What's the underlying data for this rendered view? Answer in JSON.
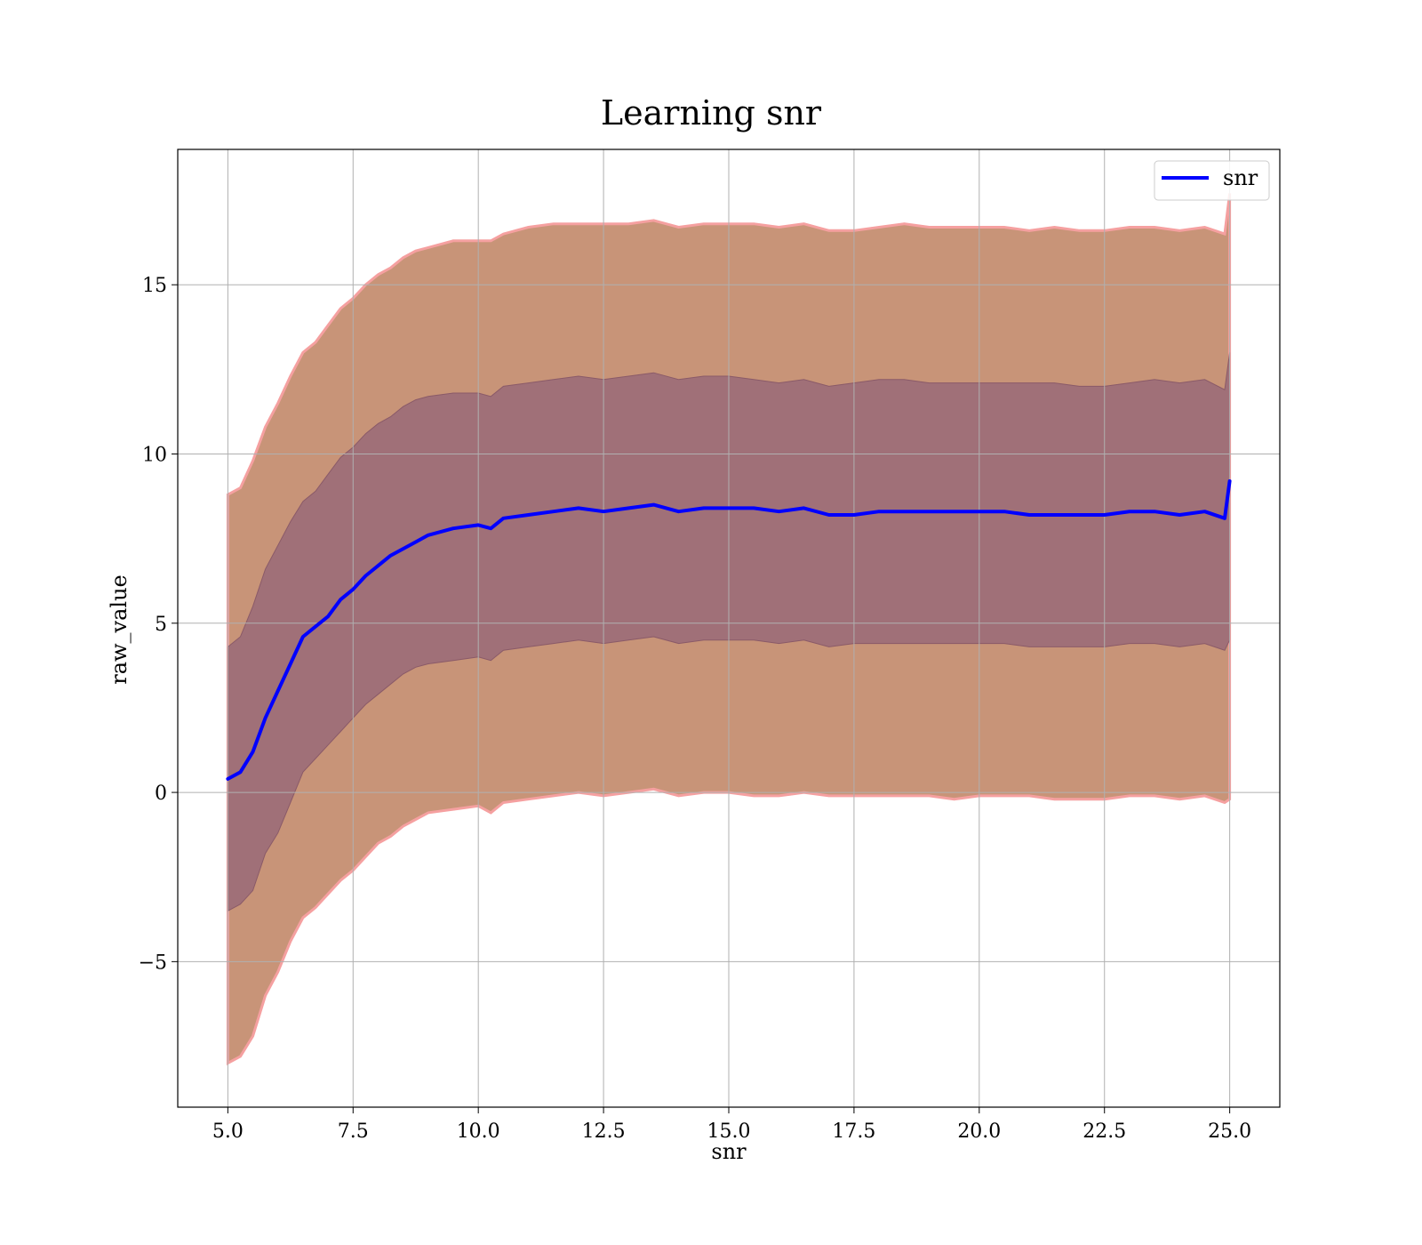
{
  "chart_data": {
    "type": "line",
    "title": "Learning snr",
    "xlabel": "snr",
    "ylabel": "raw_value",
    "xlim": [
      4.0,
      26.0
    ],
    "ylim": [
      -9.3,
      19.0
    ],
    "xticks": [
      5.0,
      7.5,
      10.0,
      12.5,
      15.0,
      17.5,
      20.0,
      22.5,
      25.0
    ],
    "xtick_labels": [
      "5.0",
      "7.5",
      "10.0",
      "12.5",
      "15.0",
      "17.5",
      "20.0",
      "22.5",
      "25.0"
    ],
    "yticks": [
      -5,
      0,
      5,
      10,
      15
    ],
    "ytick_labels": [
      "−5",
      "0",
      "5",
      "10",
      "15"
    ],
    "grid": true,
    "legend": {
      "position": "top-right",
      "entries": [
        "snr"
      ]
    },
    "colors": {
      "line": "#0000ff",
      "inner_band": "#a07078",
      "outer_band": "#c89478",
      "band_edge": "#f5a0a0"
    },
    "x": [
      5.0,
      5.25,
      5.5,
      5.75,
      6.0,
      6.25,
      6.5,
      6.75,
      7.0,
      7.25,
      7.5,
      7.75,
      8.0,
      8.25,
      8.5,
      8.75,
      9.0,
      9.5,
      10.0,
      10.25,
      10.5,
      11.0,
      11.5,
      12.0,
      12.5,
      13.0,
      13.5,
      14.0,
      14.5,
      15.0,
      15.5,
      16.0,
      16.5,
      17.0,
      17.5,
      18.0,
      18.5,
      19.0,
      19.5,
      20.0,
      20.5,
      21.0,
      21.5,
      22.0,
      22.5,
      23.0,
      23.5,
      24.0,
      24.5,
      24.9,
      25.0
    ],
    "series": [
      {
        "name": "snr",
        "values": [
          0.4,
          0.6,
          1.2,
          2.2,
          3.0,
          3.8,
          4.6,
          4.9,
          5.2,
          5.7,
          6.0,
          6.4,
          6.7,
          7.0,
          7.2,
          7.4,
          7.6,
          7.8,
          7.9,
          7.8,
          8.1,
          8.2,
          8.3,
          8.4,
          8.3,
          8.4,
          8.5,
          8.3,
          8.4,
          8.4,
          8.4,
          8.3,
          8.4,
          8.2,
          8.2,
          8.3,
          8.3,
          8.3,
          8.3,
          8.3,
          8.3,
          8.2,
          8.2,
          8.2,
          8.2,
          8.3,
          8.3,
          8.2,
          8.3,
          8.1,
          9.2
        ]
      }
    ],
    "bands": [
      {
        "level": "outer",
        "upper": [
          8.8,
          9.0,
          9.8,
          10.8,
          11.5,
          12.3,
          13.0,
          13.3,
          13.8,
          14.3,
          14.6,
          15.0,
          15.3,
          15.5,
          15.8,
          16.0,
          16.1,
          16.3,
          16.3,
          16.3,
          16.5,
          16.7,
          16.8,
          16.8,
          16.8,
          16.8,
          16.9,
          16.7,
          16.8,
          16.8,
          16.8,
          16.7,
          16.8,
          16.6,
          16.6,
          16.7,
          16.8,
          16.7,
          16.7,
          16.7,
          16.7,
          16.6,
          16.7,
          16.6,
          16.6,
          16.7,
          16.7,
          16.6,
          16.7,
          16.5,
          17.7
        ],
        "lower": [
          -8.0,
          -7.8,
          -7.2,
          -6.0,
          -5.3,
          -4.4,
          -3.7,
          -3.4,
          -3.0,
          -2.6,
          -2.3,
          -1.9,
          -1.5,
          -1.3,
          -1.0,
          -0.8,
          -0.6,
          -0.5,
          -0.4,
          -0.6,
          -0.3,
          -0.2,
          -0.1,
          0.0,
          -0.1,
          0.0,
          0.1,
          -0.1,
          0.0,
          0.0,
          -0.1,
          -0.1,
          0.0,
          -0.1,
          -0.1,
          -0.1,
          -0.1,
          -0.1,
          -0.2,
          -0.1,
          -0.1,
          -0.1,
          -0.2,
          -0.2,
          -0.2,
          -0.1,
          -0.1,
          -0.2,
          -0.1,
          -0.3,
          -0.2
        ]
      },
      {
        "level": "inner",
        "upper": [
          4.3,
          4.6,
          5.5,
          6.6,
          7.3,
          8.0,
          8.6,
          8.9,
          9.4,
          9.9,
          10.2,
          10.6,
          10.9,
          11.1,
          11.4,
          11.6,
          11.7,
          11.8,
          11.8,
          11.7,
          12.0,
          12.1,
          12.2,
          12.3,
          12.2,
          12.3,
          12.4,
          12.2,
          12.3,
          12.3,
          12.2,
          12.1,
          12.2,
          12.0,
          12.1,
          12.2,
          12.2,
          12.1,
          12.1,
          12.1,
          12.1,
          12.1,
          12.1,
          12.0,
          12.0,
          12.1,
          12.2,
          12.1,
          12.2,
          11.9,
          13.0
        ],
        "lower": [
          -3.5,
          -3.3,
          -2.9,
          -1.8,
          -1.2,
          -0.3,
          0.6,
          1.0,
          1.4,
          1.8,
          2.2,
          2.6,
          2.9,
          3.2,
          3.5,
          3.7,
          3.8,
          3.9,
          4.0,
          3.9,
          4.2,
          4.3,
          4.4,
          4.5,
          4.4,
          4.5,
          4.6,
          4.4,
          4.5,
          4.5,
          4.5,
          4.4,
          4.5,
          4.3,
          4.4,
          4.4,
          4.4,
          4.4,
          4.4,
          4.4,
          4.4,
          4.3,
          4.3,
          4.3,
          4.3,
          4.4,
          4.4,
          4.3,
          4.4,
          4.2,
          4.5
        ]
      }
    ]
  }
}
